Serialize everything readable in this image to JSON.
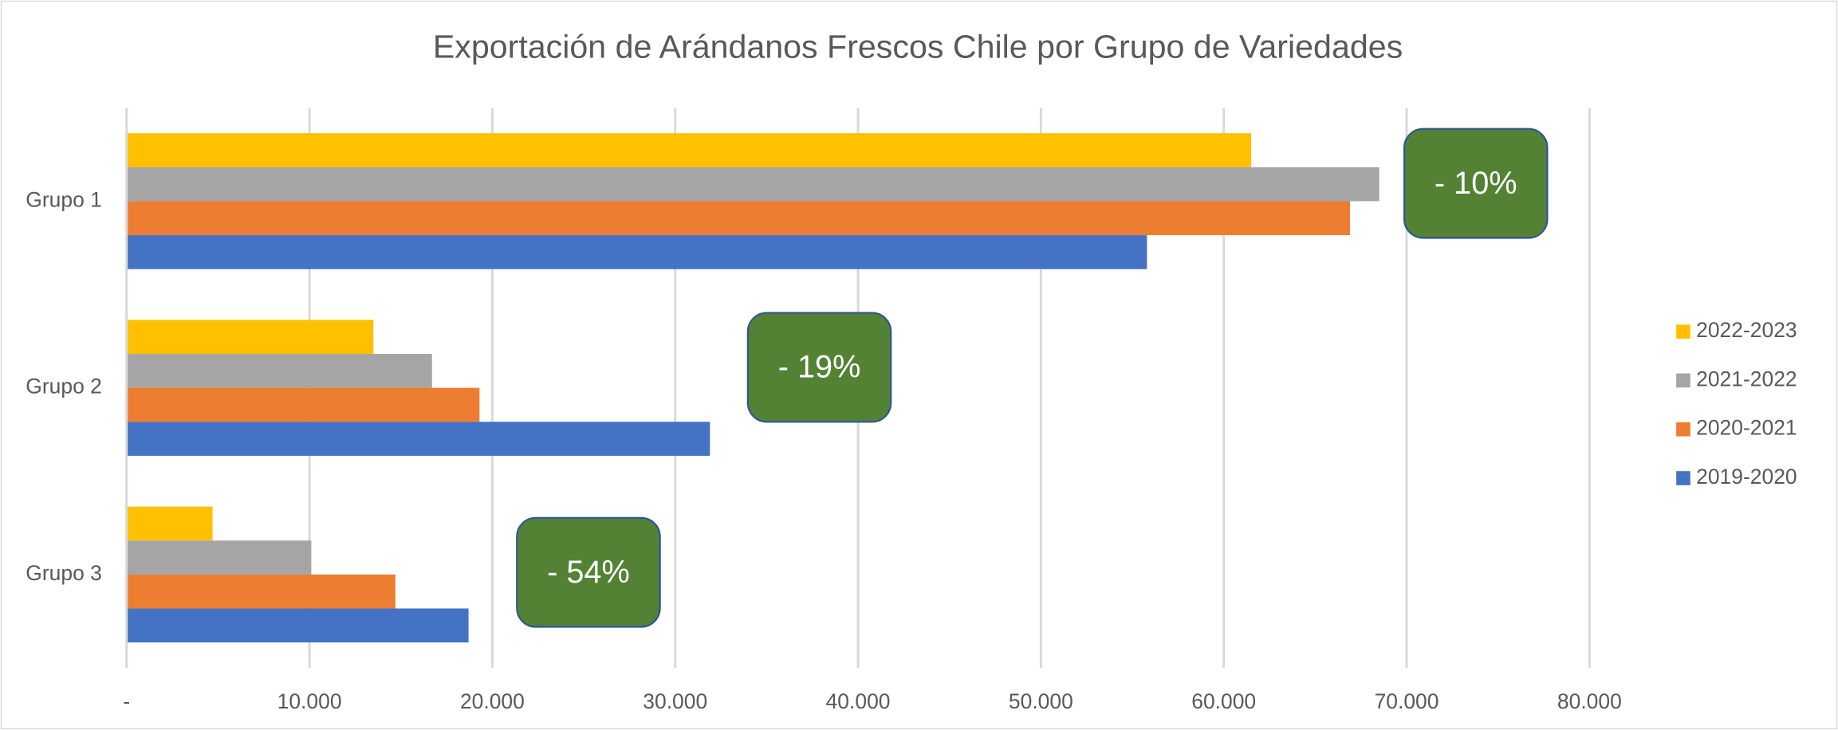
{
  "chart_data": {
    "type": "bar",
    "orientation": "horizontal",
    "title": "Exportación de Arándanos Frescos Chile por Grupo de Variedades",
    "categories": [
      "Grupo 1",
      "Grupo 2",
      "Grupo 3"
    ],
    "series": [
      {
        "name": "2022-2023",
        "color": "#ffc000",
        "values": [
          61500,
          13500,
          4700
        ]
      },
      {
        "name": "2021-2022",
        "color": "#a5a5a5",
        "values": [
          68500,
          16700,
          10100
        ]
      },
      {
        "name": "2020-2021",
        "color": "#ed7d31",
        "values": [
          66900,
          19300,
          14700
        ]
      },
      {
        "name": "2019-2020",
        "color": "#4472c4",
        "values": [
          55800,
          31900,
          18700
        ]
      }
    ],
    "xlim": [
      0,
      80000
    ],
    "xticks": [
      {
        "value": 0,
        "label": "-"
      },
      {
        "value": 10000,
        "label": "10.000"
      },
      {
        "value": 20000,
        "label": "20.000"
      },
      {
        "value": 30000,
        "label": "30.000"
      },
      {
        "value": 40000,
        "label": "40.000"
      },
      {
        "value": 50000,
        "label": "50.000"
      },
      {
        "value": 60000,
        "label": "60.000"
      },
      {
        "value": 70000,
        "label": "70.000"
      },
      {
        "value": 80000,
        "label": "80.000"
      }
    ],
    "grid": true,
    "legend": "right",
    "annotations": [
      "- 10%",
      "- 19%",
      "- 54%"
    ]
  }
}
